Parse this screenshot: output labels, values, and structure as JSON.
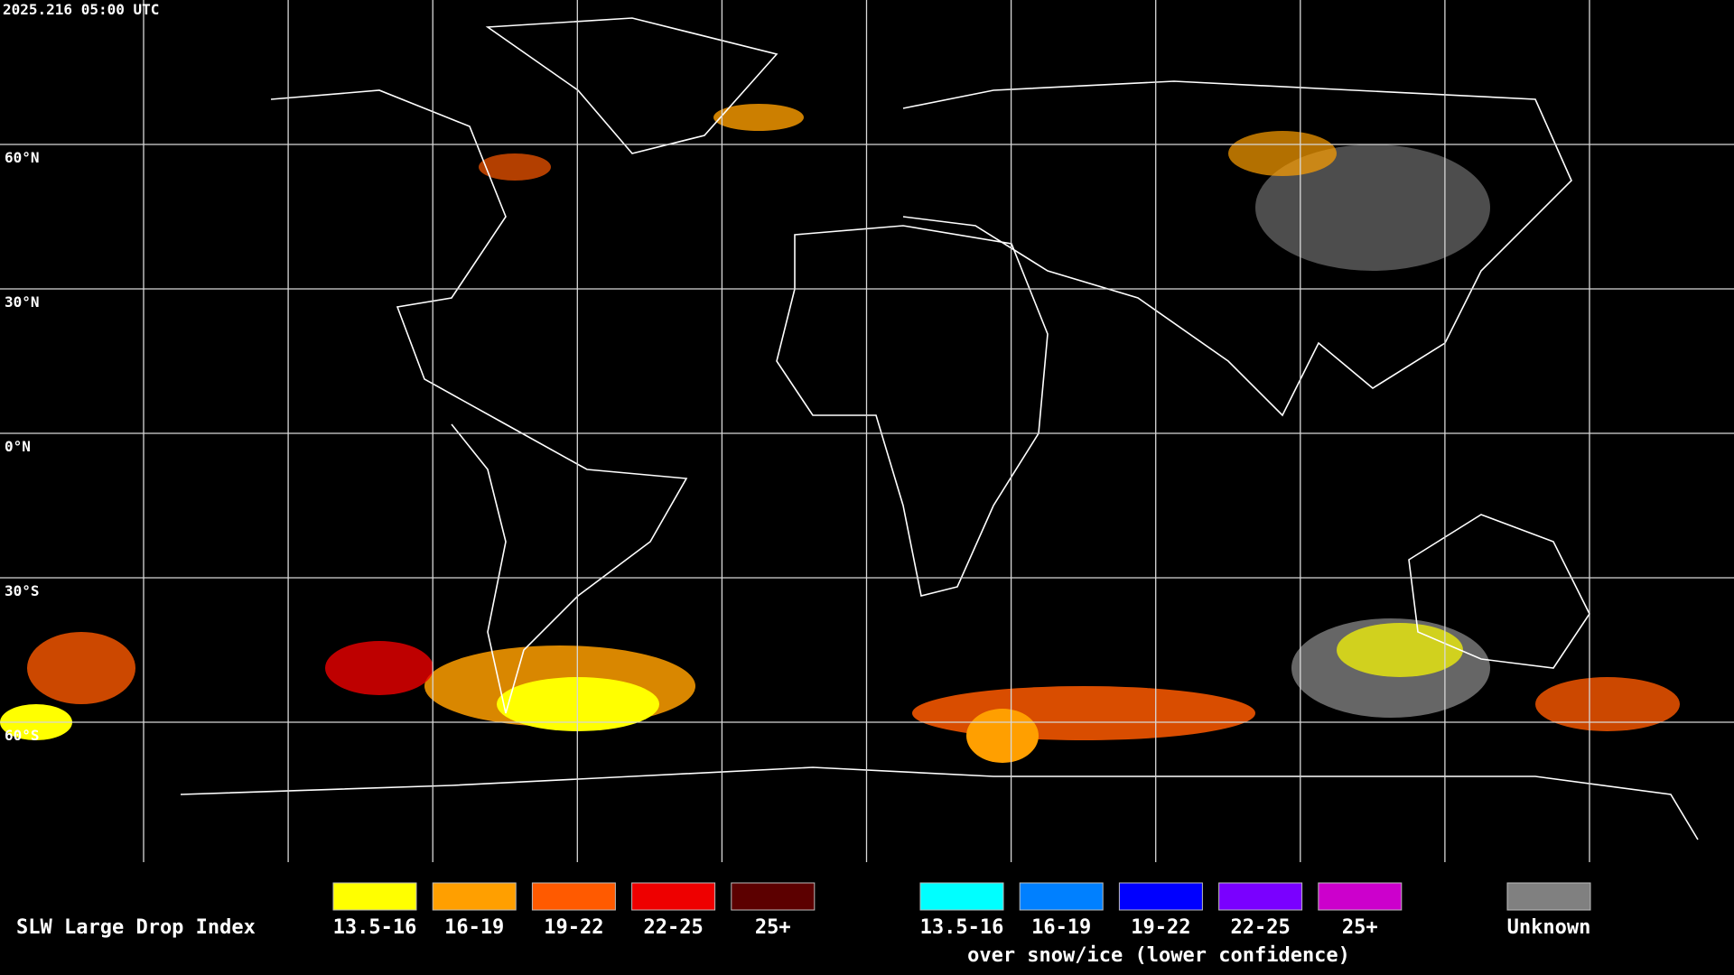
{
  "header": {
    "timestamp": "2025.216 05:00 UTC"
  },
  "map": {
    "lat_labels": [
      "60°N",
      "30°N",
      "0°N",
      "30°S",
      "60°S"
    ]
  },
  "legend": {
    "title": "SLW Large Drop Index",
    "entries": [
      {
        "label": "13.5-16",
        "color": "#ffff00"
      },
      {
        "label": "16-19",
        "color": "#ff9f00"
      },
      {
        "label": "19-22",
        "color": "#ff5a00"
      },
      {
        "label": "22-25",
        "color": "#ee0000"
      },
      {
        "label": "25+",
        "color": "#5c0000"
      }
    ],
    "snow_entries": [
      {
        "label": "13.5-16",
        "color": "#00ffff"
      },
      {
        "label": "16-19",
        "color": "#0080ff"
      },
      {
        "label": "19-22",
        "color": "#0000ff"
      },
      {
        "label": "22-25",
        "color": "#7a00ff"
      },
      {
        "label": "25+",
        "color": "#cc00cc"
      }
    ],
    "snow_caption": "over snow/ice (lower confidence)",
    "unknown": {
      "label": "Unknown",
      "color": "#808080"
    }
  }
}
